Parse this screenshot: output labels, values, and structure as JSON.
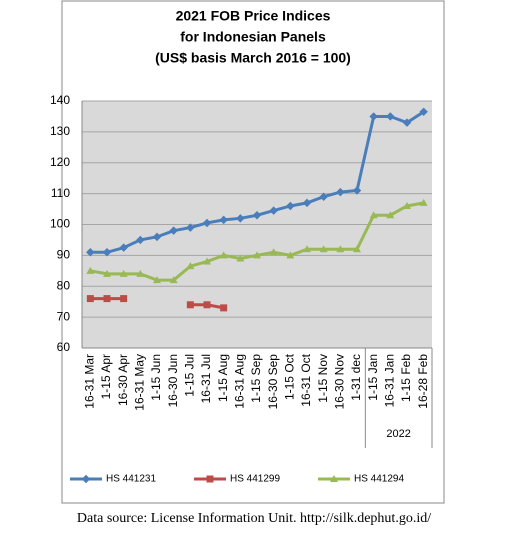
{
  "chart_data": {
    "type": "line",
    "title": [
      "2021 FOB Price Indices",
      "for Indonesian Panels"
    ],
    "subtitle": "(US$ basis March 2016 = 100)",
    "categories": [
      "16-31 Mar",
      "1-15 Apr",
      "16-30 Apr",
      "16-31 May",
      "1-15 Jun",
      "16-30 Jun",
      "1-15 Jul",
      "16-31 Jul",
      "1-15 Aug",
      "16-31 Aug",
      "1-15 Sep",
      "16-30 Sep",
      "1-15 Oct",
      "16-31 Oct",
      "1-15 Nov",
      "16-30 Nov",
      "1-31 dec",
      "1-15 Jan",
      "16-31 Jan",
      "1-15 Feb",
      "16-28 Feb"
    ],
    "series": [
      {
        "name": "HS 441231",
        "color": "#4a7ebb",
        "values": [
          91,
          91,
          92.5,
          95,
          96,
          98,
          99,
          100.5,
          101.5,
          102,
          103,
          104.5,
          106,
          107,
          109,
          110.5,
          111,
          135,
          135,
          133,
          136.5
        ]
      },
      {
        "name": "HS 441299",
        "color": "#be4b48",
        "values": [
          76,
          76,
          76,
          null,
          null,
          null,
          74,
          74,
          73,
          null,
          null,
          null,
          null,
          null,
          null,
          null,
          null,
          null,
          null,
          null,
          null
        ]
      },
      {
        "name": "HS 441294",
        "color": "#98b954",
        "values": [
          85,
          84,
          84,
          84,
          82,
          82,
          86.5,
          88,
          90,
          89,
          90,
          91,
          90,
          92,
          92,
          92,
          92,
          103,
          103,
          106,
          107
        ]
      }
    ],
    "annotation": "2022",
    "ylim": [
      60,
      140
    ],
    "yticks": [
      60,
      70,
      80,
      90,
      100,
      110,
      120,
      130,
      140
    ],
    "grid": true,
    "source": "Data source: License Information Unit. http://silk.dephut.go.id/"
  }
}
